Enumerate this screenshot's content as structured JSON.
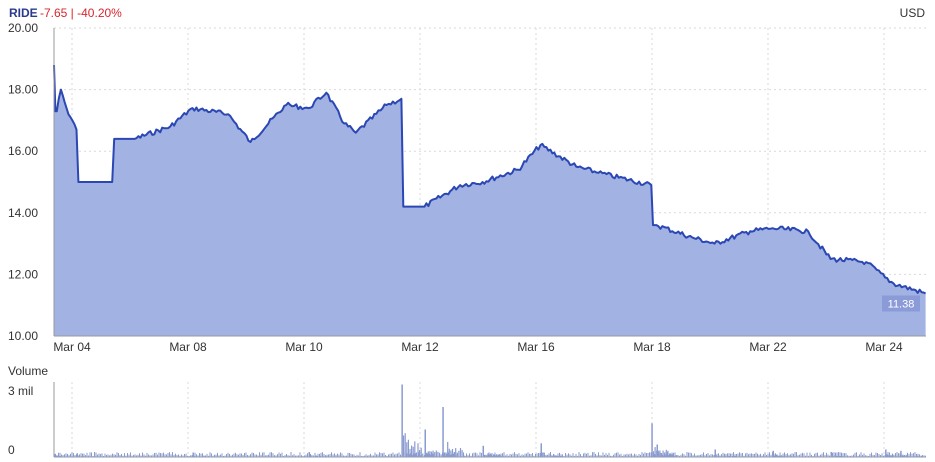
{
  "header": {
    "ticker": "RIDE",
    "change": "-7.65 | -40.20%",
    "currency": "USD"
  },
  "colors": {
    "line": "#2b47b3",
    "area": "#a2b2e3",
    "volume": "#8a9bd0",
    "ticker": "#2b3a8f",
    "negative": "#d7262d",
    "last_label_bg": "#8a9bd8"
  },
  "chart_data": [
    {
      "type": "area",
      "series": [
        {
          "x": [
            "Mar 03 09:30",
            "Mar 03 10:30",
            "Mar 03 12:00",
            "Mar 03 14:00",
            "Mar 04 10:00",
            "Mar 04 14:00",
            "Mar 05 10:00",
            "Mar 05 14:00",
            "Mar 08 10:00",
            "Mar 08 14:00",
            "Mar 09 10:00",
            "Mar 09 14:00",
            "Mar 10 10:00",
            "Mar 10 12:00",
            "Mar 10 14:00",
            "Mar 11 10:00",
            "Mar 11 14:00",
            "Mar 11 15:55",
            "Mar 12 10:00",
            "Mar 12 14:00",
            "Mar 15 10:00",
            "Mar 15 14:00",
            "Mar 16 10:00",
            "Mar 16 14:00",
            "Mar 17 10:00",
            "Mar 17 15:55",
            "Mar 18 10:00",
            "Mar 18 14:00",
            "Mar 19 10:00",
            "Mar 19 14:00",
            "Mar 22 10:00",
            "Mar 22 14:00",
            "Mar 23 10:00",
            "Mar 23 14:00",
            "Mar 24 10:00",
            "Mar 24 14:00",
            "Mar 25 15:55"
          ],
          "values": [
            18.8,
            17.3,
            18.0,
            17.4,
            16.7,
            15.0,
            16.4,
            16.8,
            17.4,
            17.2,
            16.3,
            17.5,
            17.4,
            17.9,
            16.9,
            16.6,
            17.5,
            17.7,
            14.2,
            14.9,
            15.0,
            15.4,
            16.2,
            15.5,
            15.3,
            14.9,
            13.6,
            13.2,
            13.0,
            13.4,
            13.5,
            13.4,
            12.5,
            12.4,
            11.9,
            11.7,
            11.38
          ]
        }
      ],
      "y_ticks": [
        "10.00",
        "12.00",
        "14.00",
        "16.00",
        "18.00",
        "20.00"
      ],
      "ylim": [
        10,
        20
      ],
      "x_ticks": [
        "Mar 04",
        "Mar 08",
        "Mar 10",
        "Mar 12",
        "Mar 16",
        "Mar 18",
        "Mar 22",
        "Mar 24"
      ],
      "last_value_label": "11.38",
      "grid": true
    },
    {
      "type": "bar",
      "title": "Volume",
      "y_ticks": [
        "0",
        "3 mil"
      ],
      "ylim": [
        0,
        3
      ],
      "spikes": [
        {
          "x": "Mar 03 09:30",
          "value": 0.12
        },
        {
          "x": "Mar 04 10:00",
          "value": 0.15
        },
        {
          "x": "Mar 08 10:00",
          "value": 0.18
        },
        {
          "x": "Mar 10 10:00",
          "value": 0.2
        },
        {
          "x": "Mar 11 15:55",
          "value": 2.9
        },
        {
          "x": "Mar 12 10:00",
          "value": 1.1
        },
        {
          "x": "Mar 12 12:00",
          "value": 2.0
        },
        {
          "x": "Mar 15 10:00",
          "value": 0.45
        },
        {
          "x": "Mar 16 10:00",
          "value": 0.55
        },
        {
          "x": "Mar 17 15:55",
          "value": 1.35
        },
        {
          "x": "Mar 18 10:00",
          "value": 0.5
        },
        {
          "x": "Mar 19 10:00",
          "value": 0.3
        },
        {
          "x": "Mar 22 10:00",
          "value": 0.25
        },
        {
          "x": "Mar 23 10:00",
          "value": 0.2
        },
        {
          "x": "Mar 24 10:00",
          "value": 0.3
        },
        {
          "x": "Mar 25 10:00",
          "value": 0.25
        }
      ]
    }
  ]
}
